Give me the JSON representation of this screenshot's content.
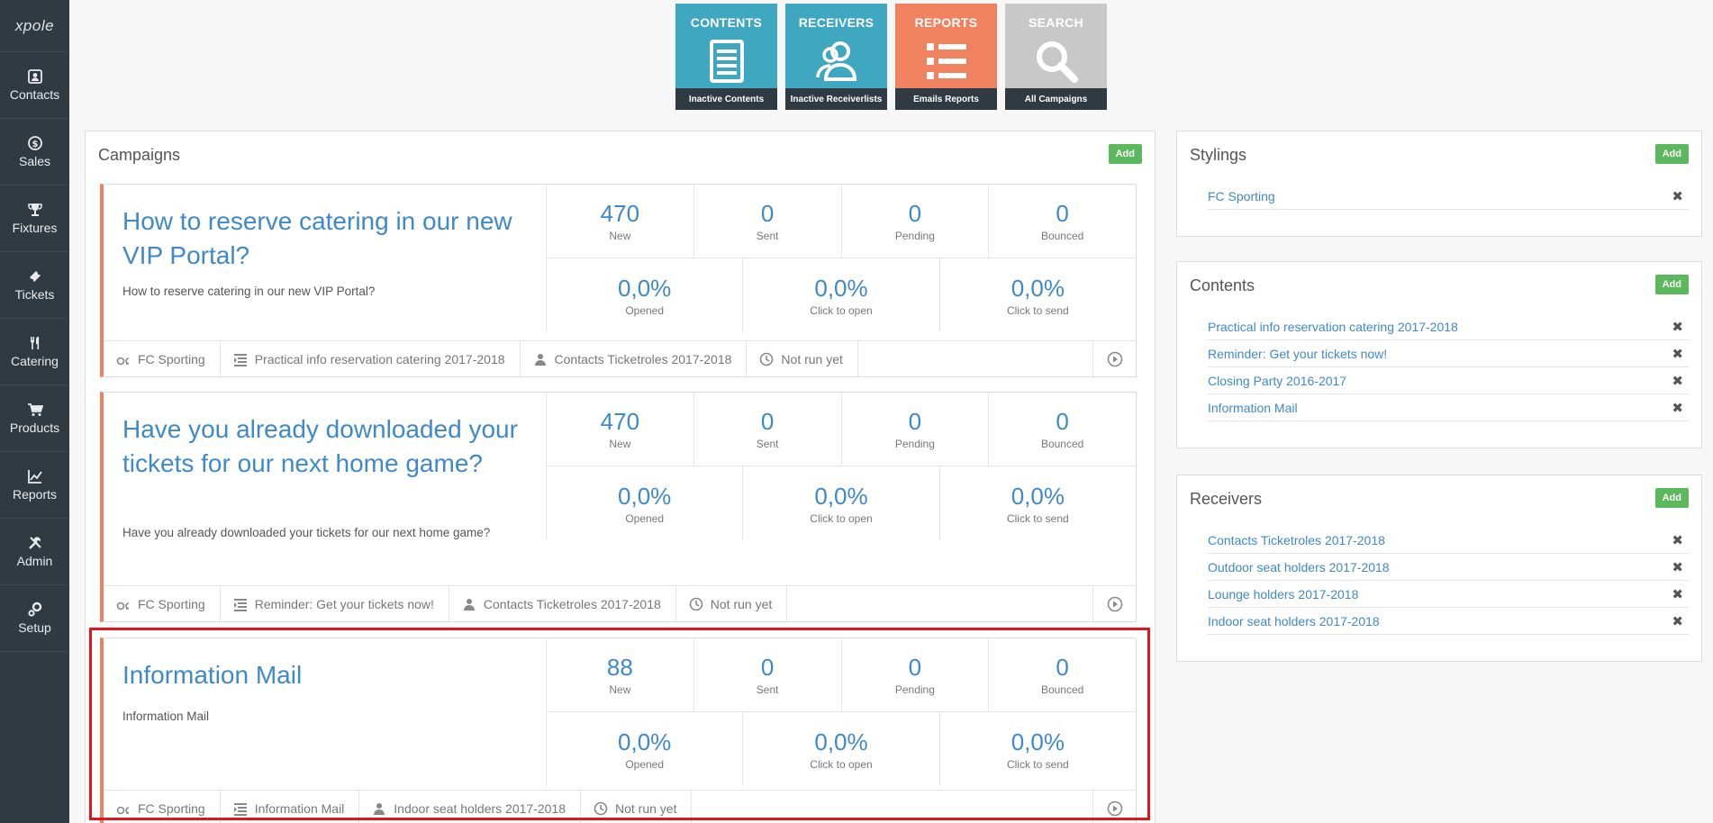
{
  "sidebar": {
    "logo": "xpole",
    "items": [
      {
        "label": "Contacts",
        "icon": "contacts-icon"
      },
      {
        "label": "Sales",
        "icon": "dollar-icon"
      },
      {
        "label": "Fixtures",
        "icon": "trophy-icon"
      },
      {
        "label": "Tickets",
        "icon": "ticket-icon"
      },
      {
        "label": "Catering",
        "icon": "cutlery-icon"
      },
      {
        "label": "Products",
        "icon": "cart-icon"
      },
      {
        "label": "Reports",
        "icon": "chart-icon"
      },
      {
        "label": "Admin",
        "icon": "tools-icon"
      },
      {
        "label": "Setup",
        "icon": "gears-icon"
      }
    ]
  },
  "tiles": [
    {
      "title": "CONTENTS",
      "footer": "Inactive Contents",
      "color": "#3fa7bf",
      "icon": "document-icon"
    },
    {
      "title": "RECEIVERS",
      "footer": "Inactive Receiverlists",
      "color": "#3fa7bf",
      "icon": "users-icon"
    },
    {
      "title": "REPORTS",
      "footer": "Emails Reports",
      "color": "#f0825f",
      "icon": "list-icon"
    },
    {
      "title": "SEARCH",
      "footer": "All Campaigns",
      "color": "#c8c8c8",
      "icon": "magnifier-icon"
    }
  ],
  "campaigns": {
    "title": "Campaigns",
    "add_label": "Add",
    "items": [
      {
        "title": "How to reserve catering in our new VIP Portal?",
        "subtitle": "How to reserve catering in our new VIP Portal?",
        "stats_top": [
          {
            "value": "470",
            "label": "New"
          },
          {
            "value": "0",
            "label": "Sent"
          },
          {
            "value": "0",
            "label": "Pending"
          },
          {
            "value": "0",
            "label": "Bounced"
          }
        ],
        "stats_bottom": [
          {
            "value": "0,0%",
            "label": "Opened"
          },
          {
            "value": "0,0%",
            "label": "Click to open"
          },
          {
            "value": "0,0%",
            "label": "Click to send"
          }
        ],
        "footer": {
          "styling": "FC Sporting",
          "content": "Practical info reservation catering 2017-2018",
          "receivers": "Contacts Ticketroles 2017-2018",
          "status": "Not run yet"
        }
      },
      {
        "title": "Have you already downloaded your tickets for our next home game?",
        "subtitle": "Have you already downloaded your tickets for our next home game?",
        "stats_top": [
          {
            "value": "470",
            "label": "New"
          },
          {
            "value": "0",
            "label": "Sent"
          },
          {
            "value": "0",
            "label": "Pending"
          },
          {
            "value": "0",
            "label": "Bounced"
          }
        ],
        "stats_bottom": [
          {
            "value": "0,0%",
            "label": "Opened"
          },
          {
            "value": "0,0%",
            "label": "Click to open"
          },
          {
            "value": "0,0%",
            "label": "Click to send"
          }
        ],
        "footer": {
          "styling": "FC Sporting",
          "content": "Reminder: Get your tickets now!",
          "receivers": "Contacts Ticketroles 2017-2018",
          "status": "Not run yet"
        }
      },
      {
        "title": "Information Mail",
        "subtitle": "Information Mail",
        "stats_top": [
          {
            "value": "88",
            "label": "New"
          },
          {
            "value": "0",
            "label": "Sent"
          },
          {
            "value": "0",
            "label": "Pending"
          },
          {
            "value": "0",
            "label": "Bounced"
          }
        ],
        "stats_bottom": [
          {
            "value": "0,0%",
            "label": "Opened"
          },
          {
            "value": "0,0%",
            "label": "Click to open"
          },
          {
            "value": "0,0%",
            "label": "Click to send"
          }
        ],
        "footer": {
          "styling": "FC Sporting",
          "content": "Information Mail",
          "receivers": "Indoor seat holders 2017-2018",
          "status": "Not run yet"
        }
      }
    ]
  },
  "stylings": {
    "title": "Stylings",
    "add_label": "Add",
    "items": [
      "FC Sporting"
    ]
  },
  "contents": {
    "title": "Contents",
    "add_label": "Add",
    "items": [
      "Practical info reservation catering 2017-2018",
      "Reminder: Get your tickets now!",
      "Closing Party 2016-2017",
      "Information Mail"
    ]
  },
  "receivers": {
    "title": "Receivers",
    "add_label": "Add",
    "items": [
      "Contacts Ticketroles 2017-2018",
      "Outdoor seat holders 2017-2018",
      "Lounge holders 2017-2018",
      "Indoor seat holders 2017-2018"
    ]
  },
  "remove_glyph": "✖",
  "highlight_color": "#e4141b"
}
